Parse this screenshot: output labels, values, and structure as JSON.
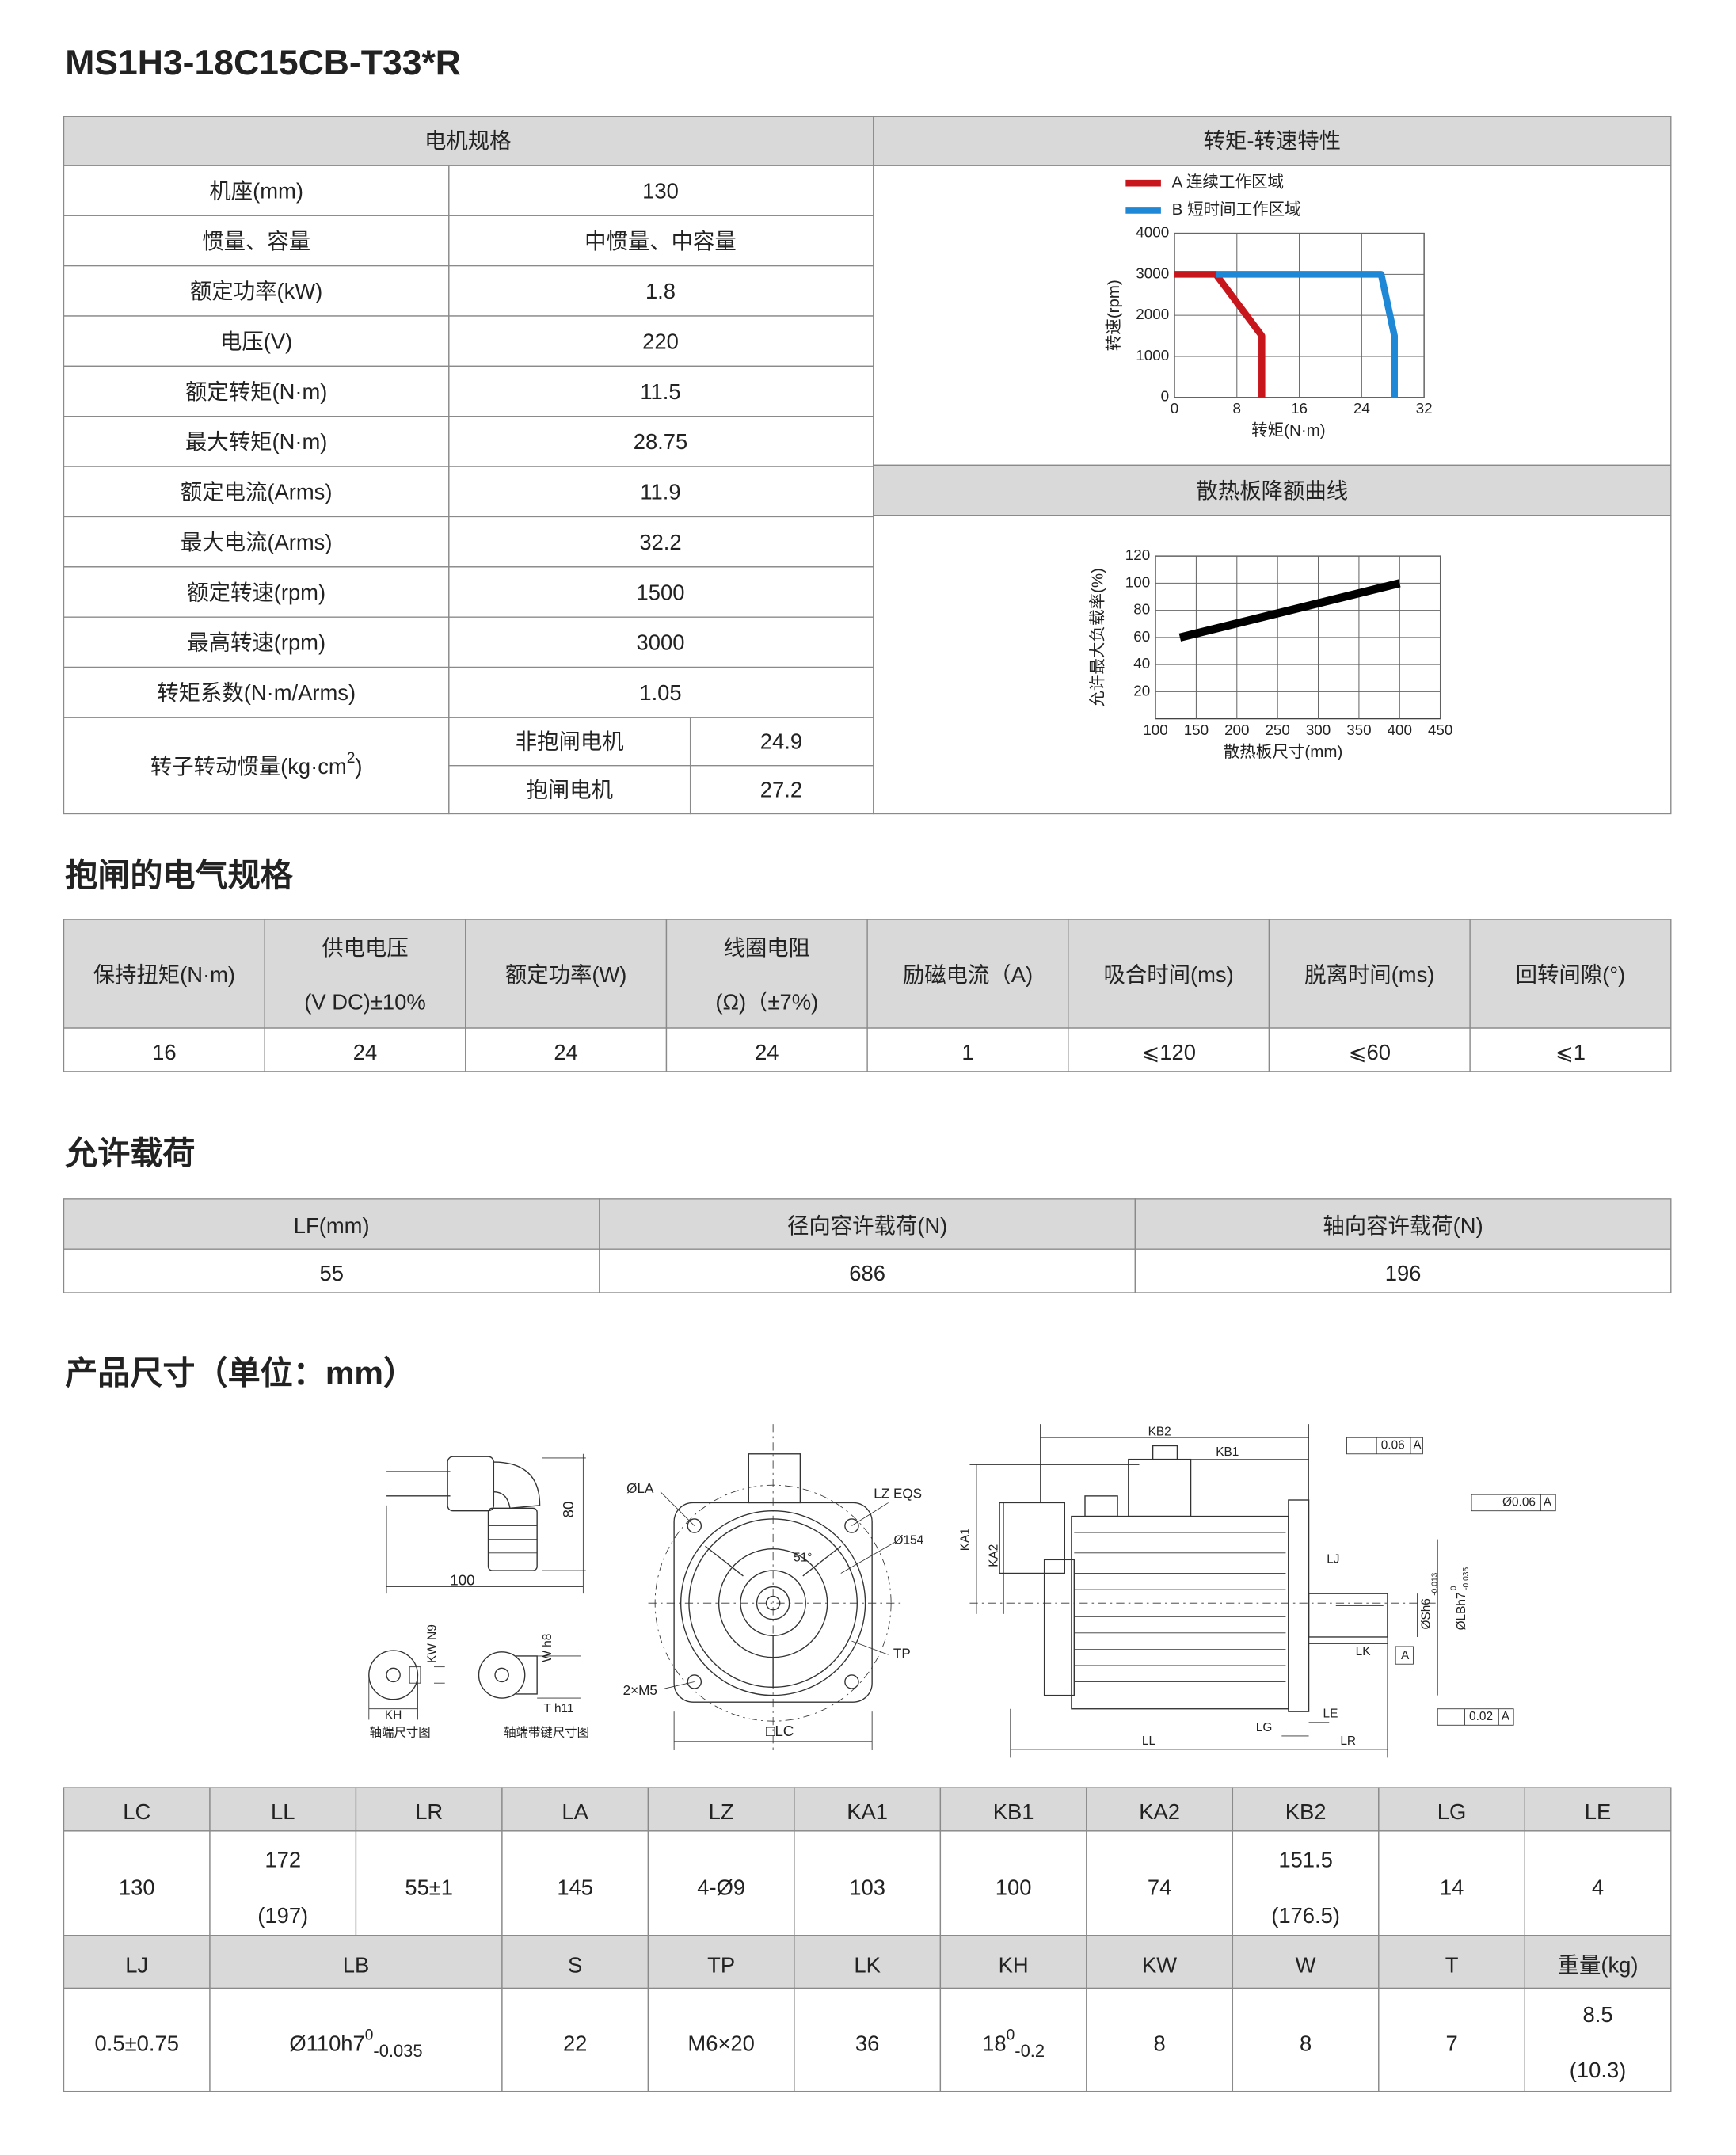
{
  "title": "MS1H3-18C15CB-T33*R",
  "spec": {
    "header": "电机规格",
    "rows": [
      [
        "机座(mm)",
        "130"
      ],
      [
        "惯量、容量",
        "中惯量、中容量"
      ],
      [
        "额定功率(kW)",
        "1.8"
      ],
      [
        "电压(V)",
        "220"
      ],
      [
        "额定转矩(N·m)",
        "11.5"
      ],
      [
        "最大转矩(N·m)",
        "28.75"
      ],
      [
        "额定电流(Arms)",
        "11.9"
      ],
      [
        "最大电流(Arms)",
        "32.2"
      ],
      [
        "额定转速(rpm)",
        "1500"
      ],
      [
        "最高转速(rpm)",
        "3000"
      ],
      [
        "转矩系数(N·m/Arms)",
        "1.05"
      ]
    ],
    "inertia": {
      "label": {
        "text": "转子转动惯量(kg·cm",
        "sup": "2",
        "end": ")"
      },
      "rows": [
        [
          "非抱闸电机",
          "24.9"
        ],
        [
          "抱闸电机",
          "27.2"
        ]
      ]
    }
  },
  "torque_chart": {
    "header": "转矩-转速特性",
    "type": "line",
    "xlabel": "转矩(N·m)",
    "ylabel": "转速(rpm)",
    "xlim": [
      0,
      32
    ],
    "xticks": [
      0,
      8,
      16,
      24,
      32
    ],
    "ylim": [
      0,
      4000
    ],
    "yticks": [
      0,
      1000,
      2000,
      3000,
      4000
    ],
    "grid": true,
    "series": [
      {
        "name": "A 连续工作区域",
        "color": "#c8161d",
        "x": [
          0,
          5.3,
          11.2,
          11.2
        ],
        "values": [
          3000,
          3000,
          1500,
          0
        ]
      },
      {
        "name": "B 短时间工作区域",
        "color": "#1e88d6",
        "x": [
          5.3,
          26.5,
          28.2,
          28.2
        ],
        "values": [
          3000,
          3000,
          1500,
          0
        ]
      }
    ]
  },
  "derating_chart": {
    "header": "散热板降额曲线",
    "type": "line",
    "xlabel": "散热板尺寸(mm)",
    "ylabel": "允许最大负载率(%)",
    "xlim": [
      100,
      450
    ],
    "xticks": [
      100,
      150,
      200,
      250,
      300,
      350,
      400,
      450
    ],
    "ylim": [
      0,
      120
    ],
    "yticks": [
      20,
      40,
      60,
      80,
      100,
      120
    ],
    "grid": true,
    "series": [
      {
        "color": "#000000",
        "x": [
          130,
          400
        ],
        "values": [
          60,
          100
        ]
      }
    ]
  },
  "brake": {
    "title": "抱闸的电气规格",
    "headers": [
      [
        "保持扭矩(N·m)"
      ],
      [
        "供电电压",
        "(V DC)±10%"
      ],
      [
        "额定功率(W)"
      ],
      [
        "线圈电阻",
        "(Ω)（±7%)"
      ],
      [
        "励磁电流（A)"
      ],
      [
        "吸合时间(ms)"
      ],
      [
        "脱离时间(ms)"
      ],
      [
        "回转间隙(°)"
      ]
    ],
    "values": [
      "16",
      "24",
      "24",
      "24",
      "1",
      "⩽120",
      "⩽60",
      "⩽1"
    ]
  },
  "load": {
    "title": "允许载荷",
    "headers": [
      "LF(mm)",
      "径向容许载荷(N)",
      "轴向容许载荷(N)"
    ],
    "values": [
      "55",
      "686",
      "196"
    ]
  },
  "dimensions": {
    "title": "产品尺寸（单位：mm）",
    "labels": [
      "100",
      "80",
      "ØLA",
      "LZ EQS",
      "Ø154",
      "51°",
      "TP",
      "2×M5",
      "□LC",
      "KW N9",
      "W h8",
      "KH",
      "T h11",
      "轴端尺寸图",
      "轴端带键尺寸图",
      "KB2",
      "KB1",
      "KA1",
      "KA2",
      "LJ",
      "LK",
      "LE",
      "LG",
      "LL",
      "LR",
      "0.06",
      "A",
      "Ø0.06",
      "A",
      "0.02",
      "A",
      "A",
      "ØSh6",
      "-0.013",
      "ØLBh7",
      "0",
      "-0.035"
    ],
    "table1": {
      "headers": [
        "LC",
        "LL",
        "LR",
        "LA",
        "LZ",
        "KA1",
        "KB1",
        "KA2",
        "KB2",
        "LG",
        "LE"
      ],
      "values": [
        [
          "130"
        ],
        [
          "172",
          "(197)"
        ],
        [
          "55±1"
        ],
        [
          "145"
        ],
        [
          "4-Ø9"
        ],
        [
          "103"
        ],
        [
          "100"
        ],
        [
          "74"
        ],
        [
          "151.5",
          "(176.5)"
        ],
        [
          "14"
        ],
        [
          "4"
        ]
      ]
    },
    "table2": {
      "headers": [
        "LJ",
        "LB",
        "S",
        "TP",
        "LK",
        "KH",
        "KW",
        "W",
        "T",
        "重量(kg)"
      ],
      "values": [
        {
          "text": "0.5±0.75"
        },
        {
          "text": "Ø110h7",
          "sup": "0",
          "sub": "-0.035"
        },
        {
          "text": "22"
        },
        {
          "text": "M6×20"
        },
        {
          "text": "36"
        },
        {
          "text": "18",
          "sup": "0",
          "sub": "-0.2"
        },
        {
          "text": "8"
        },
        {
          "text": "8"
        },
        {
          "text": "7"
        },
        {
          "lines": [
            "8.5",
            "(10.3)"
          ]
        }
      ]
    }
  }
}
